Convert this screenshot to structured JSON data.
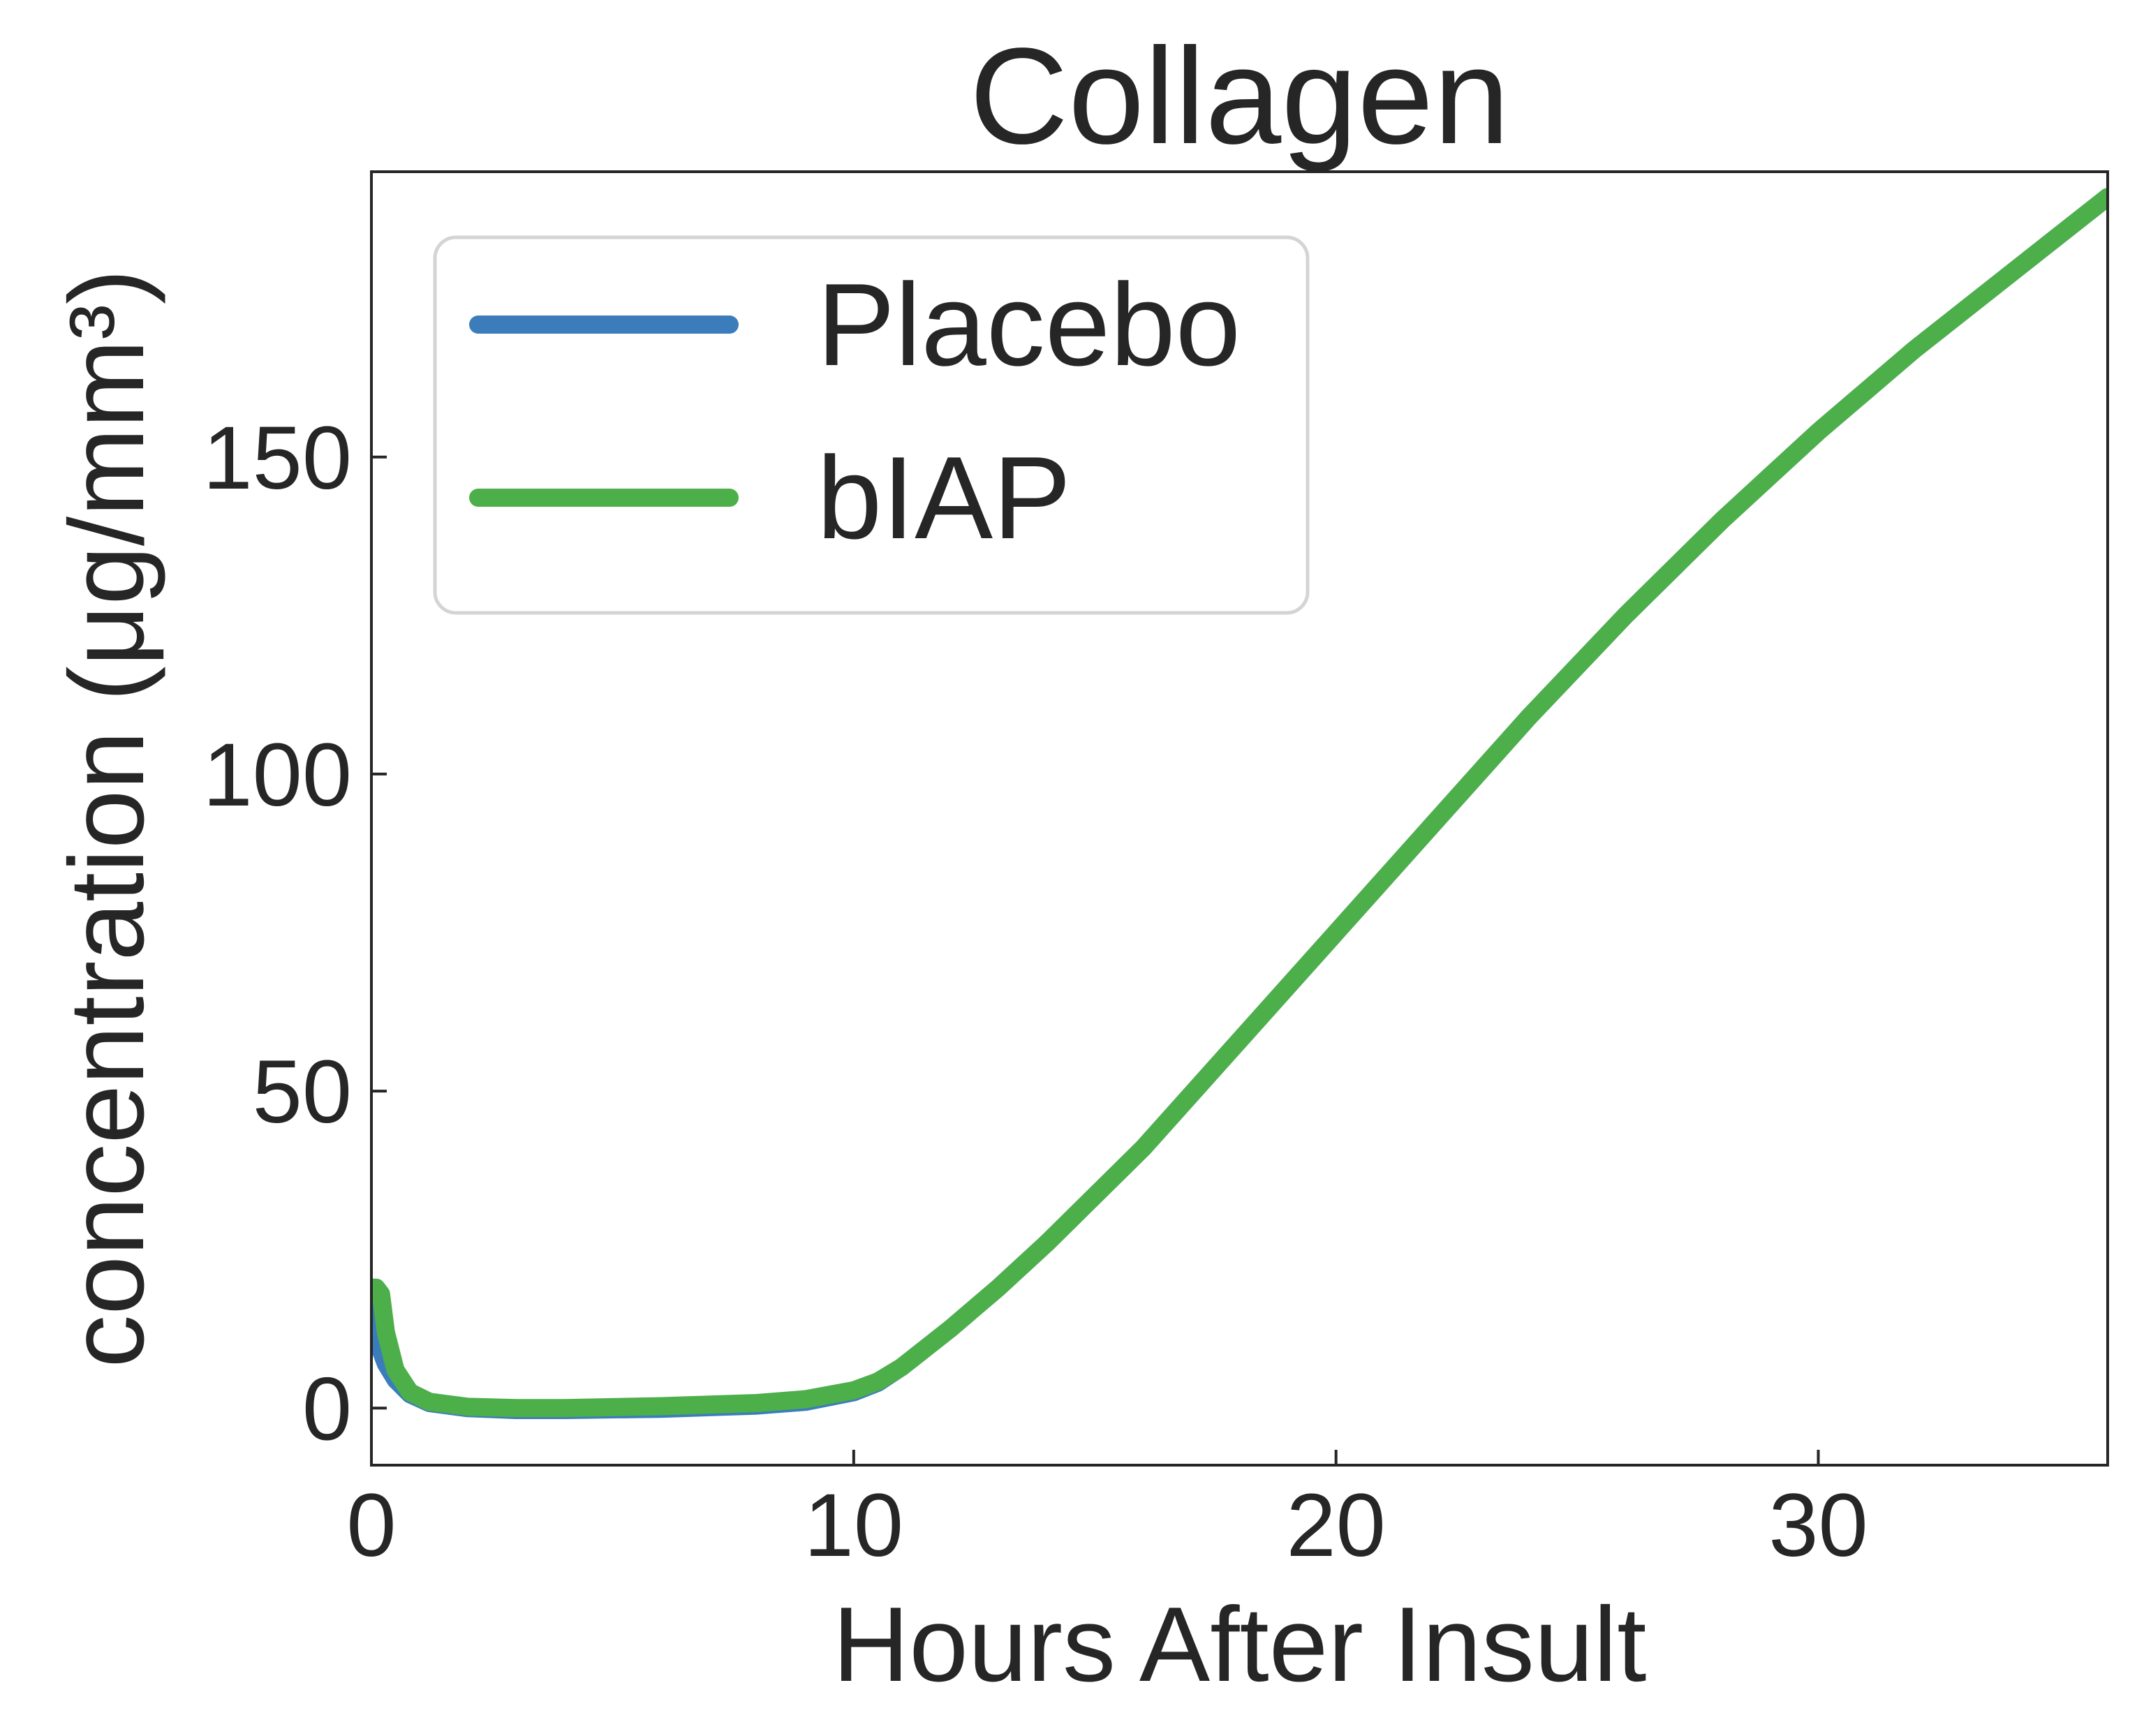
{
  "chart_data": {
    "type": "line",
    "title": "Collagen",
    "xlabel": "Hours After Insult",
    "ylabel": "concentration (μg/mm³)",
    "xlim": [
      0,
      36
    ],
    "ylim": [
      -9,
      195
    ],
    "x_ticks": [
      0,
      10,
      20,
      30
    ],
    "y_ticks": [
      0,
      50,
      100,
      150
    ],
    "grid": false,
    "legend_position": "top-left",
    "series": [
      {
        "name": "Placebo",
        "color": "#3b7dbb",
        "x": [
          0,
          0.1,
          0.2,
          0.3,
          0.5,
          0.8,
          1.2,
          2,
          3,
          4,
          6,
          8,
          9,
          10,
          10.5,
          11,
          12,
          13,
          14,
          16,
          18,
          20,
          22,
          24,
          26,
          28,
          30,
          32,
          34,
          36
        ],
        "y": [
          18,
          12,
          9,
          7,
          4.5,
          2.2,
          0.8,
          0,
          -0.3,
          -0.3,
          -0.1,
          0.4,
          1,
          2.5,
          4,
          6.5,
          12.5,
          19,
          26,
          41,
          58,
          75,
          92,
          109,
          125,
          140,
          154,
          167,
          179,
          191
        ]
      },
      {
        "name": "bIAP",
        "color": "#4daf4a",
        "x": [
          0,
          0.1,
          0.2,
          0.3,
          0.5,
          0.8,
          1.2,
          2,
          3,
          4,
          6,
          8,
          9,
          10,
          10.5,
          11,
          12,
          13,
          14,
          16,
          18,
          20,
          22,
          24,
          26,
          28,
          30,
          32,
          34,
          36
        ],
        "y": [
          19,
          19,
          18,
          12,
          6,
          2.5,
          1,
          0.2,
          0,
          0,
          0.3,
          0.8,
          1.4,
          2.8,
          4.2,
          6.5,
          12.5,
          19,
          26,
          41,
          58,
          75,
          92,
          109,
          125,
          140,
          154,
          167,
          179,
          191
        ]
      }
    ]
  }
}
